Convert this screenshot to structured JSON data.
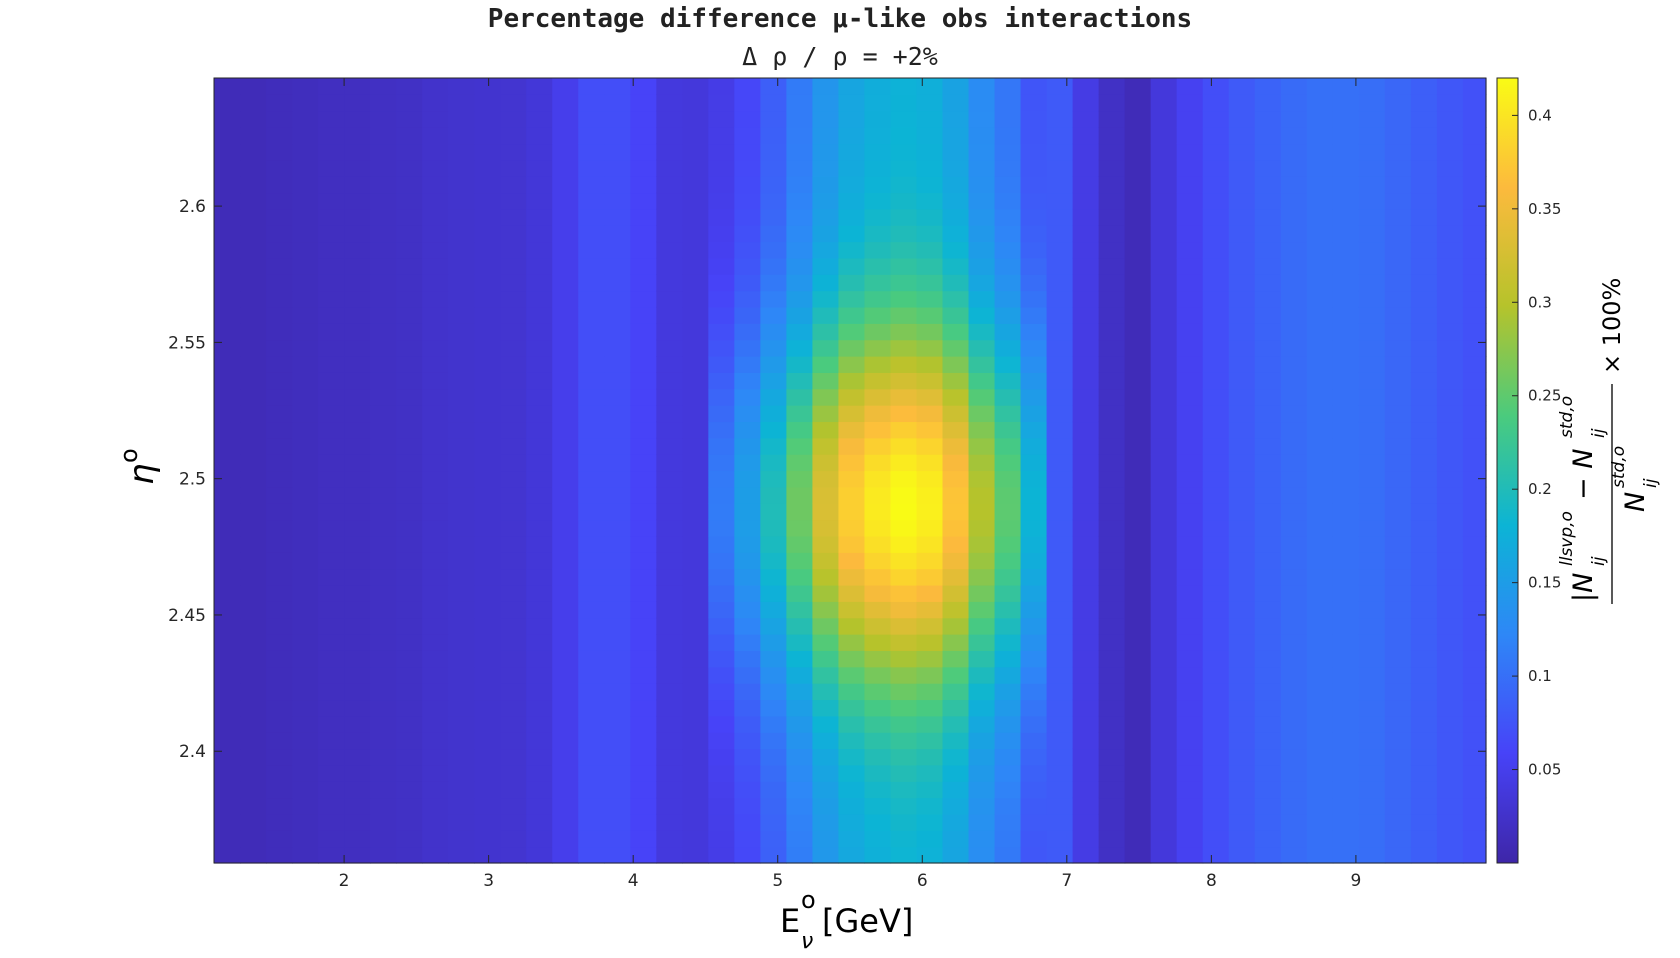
{
  "chart_data": {
    "type": "heatmap",
    "title": "Percentage difference μ-like obs interactions",
    "subtitle": "Δ  ρ  /  ρ  =  +2%",
    "xlabel": "E",
    "xlabel_sup": "o",
    "xlabel_sub": "ν",
    "xlabel_unit": "[GeV]",
    "ylabel": "η",
    "ylabel_sup": "o",
    "colorbar_label": "|N^{llsvp,o}_{ij} − N^{std,o}_{ij}| / N^{std,o}_{ij} × 100%",
    "colorbar_label_parts": {
      "num_left": "|N",
      "num_sup1": "llsvp,o",
      "minus": " − N",
      "num_sup2": "std,o",
      "sub": "ij",
      "den": "N",
      "den_sup": "std,o",
      "times": "× 100%"
    },
    "x_range": [
      1.1,
      9.9
    ],
    "y_range": [
      2.359,
      2.647
    ],
    "x_ticks": [
      "2",
      "3",
      "4",
      "5",
      "6",
      "7",
      "8",
      "9"
    ],
    "y_ticks": [
      "2.4",
      "2.45",
      "2.5",
      "2.55",
      "2.6"
    ],
    "colorbar_range": [
      0.0,
      0.42
    ],
    "colorbar_ticks": [
      "0.05",
      "0.1",
      "0.15",
      "0.2",
      "0.25",
      "0.3",
      "0.35",
      "0.4"
    ],
    "colormap": [
      "#3e26a8",
      "#4743f8",
      "#2e87f7",
      "#0cb4d5",
      "#4bcb7d",
      "#b6c32b",
      "#fcba3d",
      "#f9fb15"
    ],
    "x_bin_edges": [
      1.1,
      1.28,
      1.46,
      1.64,
      1.82,
      2.0,
      2.18,
      2.36,
      2.54,
      2.72,
      2.9,
      3.08,
      3.26,
      3.44,
      3.62,
      3.8,
      3.98,
      4.16,
      4.34,
      4.52,
      4.7,
      4.88,
      5.06,
      5.24,
      5.42,
      5.6,
      5.78,
      5.96,
      6.14,
      6.32,
      6.5,
      6.68,
      6.86,
      7.04,
      7.22,
      7.4,
      7.58,
      7.76,
      7.94,
      8.12,
      8.3,
      8.48,
      8.66,
      8.84,
      9.02,
      9.2,
      9.38,
      9.56,
      9.74,
      9.9
    ],
    "y_bins": 48,
    "x_profile": [
      0.012,
      0.012,
      0.014,
      0.016,
      0.018,
      0.018,
      0.02,
      0.022,
      0.026,
      0.028,
      0.029,
      0.03,
      0.036,
      0.05,
      0.07,
      0.07,
      0.06,
      0.04,
      0.038,
      0.11,
      0.15,
      0.2,
      0.26,
      0.33,
      0.38,
      0.405,
      0.42,
      0.41,
      0.37,
      0.3,
      0.25,
      0.18,
      0.08,
      0.045,
      0.022,
      0.012,
      0.038,
      0.055,
      0.07,
      0.08,
      0.088,
      0.095,
      0.1,
      0.1,
      0.098,
      0.092,
      0.085,
      0.078,
      0.072
    ],
    "y_peak": 2.49,
    "y_spread": 0.065,
    "y_floor": 0.42
  }
}
